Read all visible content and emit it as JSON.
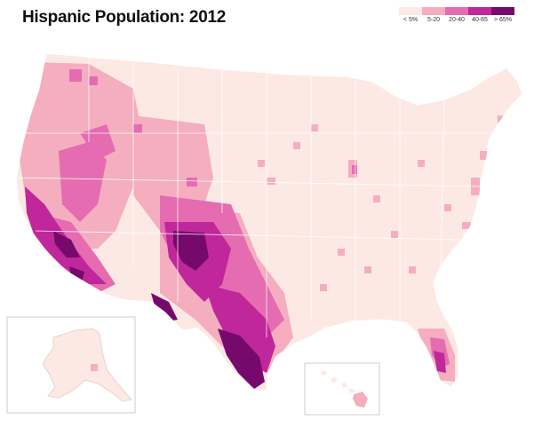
{
  "title": "Hispanic Population: 2012",
  "legend": {
    "items": [
      {
        "label": "< 5%",
        "color": "#fde9e4"
      },
      {
        "label": "5-20",
        "color": "#f4aec0"
      },
      {
        "label": "20-40",
        "color": "#e56cb0"
      },
      {
        "label": "40-65",
        "color": "#c0279a"
      },
      {
        "label": "> 65%",
        "color": "#760a6c"
      }
    ]
  },
  "map": {
    "region": "contiguous United States with Alaska and Hawaii insets",
    "border_color": "#ffffff",
    "base_color": "#fde9e4",
    "high_concentration_areas": [
      "South Texas / Rio Grande Valley",
      "New Mexico",
      "Southern California",
      "Central Valley, California",
      "Southern Florida"
    ]
  }
}
